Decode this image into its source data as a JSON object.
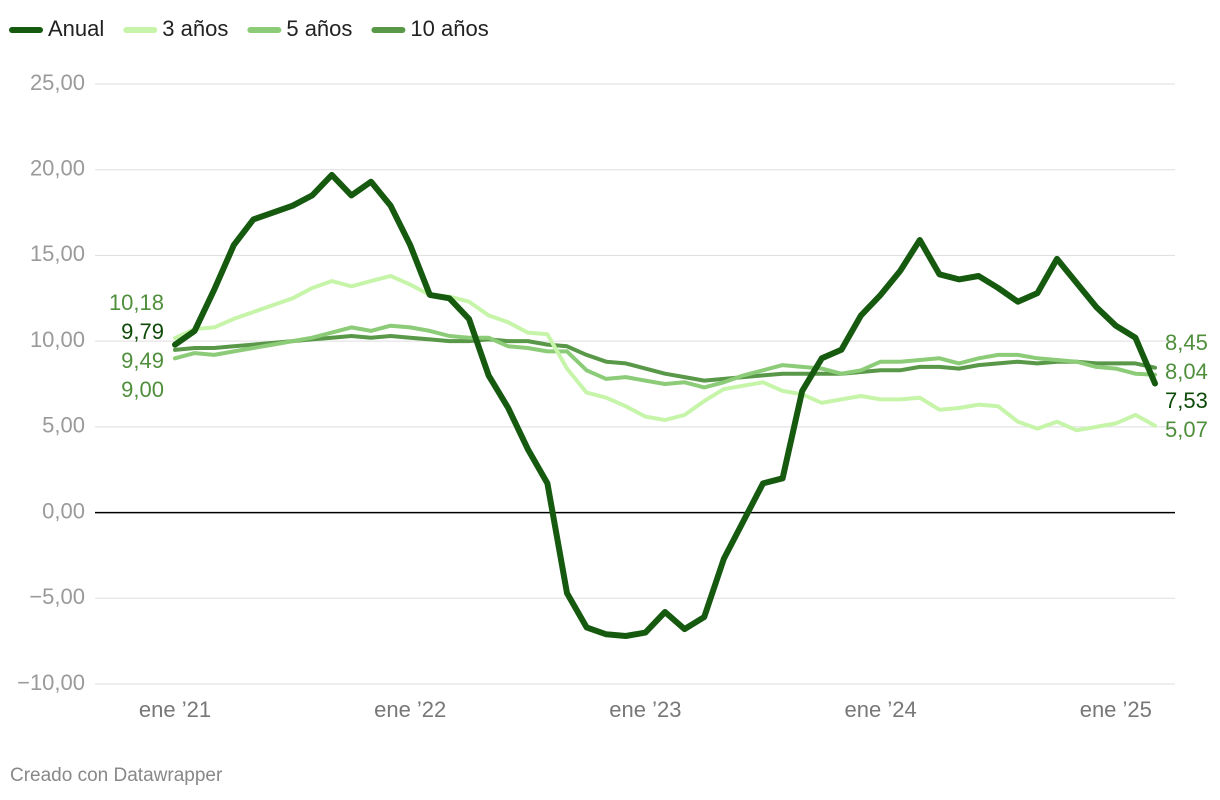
{
  "chart_data": {
    "type": "line",
    "categories": [
      "ene ’21",
      null,
      null,
      null,
      null,
      null,
      null,
      null,
      null,
      null,
      null,
      null,
      "ene ’22",
      null,
      null,
      null,
      null,
      null,
      null,
      null,
      null,
      null,
      null,
      null,
      "ene ’23",
      null,
      null,
      null,
      null,
      null,
      null,
      null,
      null,
      null,
      null,
      null,
      "ene ’24",
      null,
      null,
      null,
      null,
      null,
      null,
      null,
      null,
      null,
      null,
      null,
      "ene ’25",
      null,
      null
    ],
    "series": [
      {
        "name": "Anual",
        "color": "#165a10",
        "values": [
          9.79,
          10.6,
          13.0,
          15.6,
          17.1,
          17.5,
          17.9,
          18.5,
          19.7,
          18.5,
          19.3,
          17.9,
          15.6,
          12.7,
          12.5,
          11.3,
          8.0,
          6.1,
          3.7,
          1.7,
          -4.7,
          -6.7,
          -7.1,
          -7.2,
          -7.0,
          -5.8,
          -6.8,
          -6.1,
          -2.7,
          -0.5,
          1.7,
          2.0,
          7.1,
          9.0,
          9.5,
          11.5,
          12.7,
          14.1,
          15.9,
          13.9,
          13.6,
          13.8,
          13.1,
          12.3,
          12.8,
          14.8,
          13.4,
          12.0,
          10.9,
          10.2,
          7.53
        ],
        "value_labels": [
          "9,79",
          null,
          null,
          null,
          null,
          null,
          null,
          null,
          null,
          null,
          null,
          null,
          null,
          null,
          null,
          null,
          null,
          null,
          null,
          null,
          null,
          null,
          null,
          null,
          null,
          null,
          null,
          null,
          null,
          null,
          null,
          null,
          null,
          null,
          null,
          null,
          null,
          null,
          null,
          null,
          null,
          null,
          null,
          null,
          null,
          null,
          null,
          null,
          null,
          null,
          "7,53"
        ]
      },
      {
        "name": "3 años",
        "color": "#c6f5aa",
        "values": [
          10.18,
          10.7,
          10.8,
          11.3,
          11.7,
          12.1,
          12.5,
          13.1,
          13.5,
          13.2,
          13.5,
          13.8,
          13.3,
          12.7,
          12.6,
          12.3,
          11.5,
          11.1,
          10.5,
          10.4,
          8.4,
          7.0,
          6.7,
          6.2,
          5.6,
          5.4,
          5.7,
          6.5,
          7.2,
          7.4,
          7.6,
          7.1,
          6.9,
          6.4,
          6.6,
          6.8,
          6.6,
          6.6,
          6.7,
          6.0,
          6.1,
          6.3,
          6.2,
          5.3,
          4.9,
          5.3,
          4.8,
          5.0,
          5.2,
          5.7,
          5.07
        ],
        "value_labels": [
          "10,18",
          null,
          null,
          null,
          null,
          null,
          null,
          null,
          null,
          null,
          null,
          null,
          null,
          null,
          null,
          null,
          null,
          null,
          null,
          null,
          null,
          null,
          null,
          null,
          null,
          null,
          null,
          null,
          null,
          null,
          null,
          null,
          null,
          null,
          null,
          null,
          null,
          null,
          null,
          null,
          null,
          null,
          null,
          null,
          null,
          null,
          null,
          null,
          null,
          null,
          "5,07"
        ]
      },
      {
        "name": "5 años",
        "color": "#8ccc78",
        "values": [
          9.0,
          9.3,
          9.2,
          9.4,
          9.6,
          9.8,
          10.0,
          10.2,
          10.5,
          10.8,
          10.6,
          10.9,
          10.8,
          10.6,
          10.3,
          10.2,
          10.2,
          9.7,
          9.6,
          9.4,
          9.4,
          8.3,
          7.8,
          7.9,
          7.7,
          7.5,
          7.6,
          7.3,
          7.6,
          8.0,
          8.3,
          8.6,
          8.5,
          8.4,
          8.1,
          8.3,
          8.8,
          8.8,
          8.9,
          9.0,
          8.7,
          9.0,
          9.2,
          9.2,
          9.0,
          8.9,
          8.8,
          8.5,
          8.4,
          8.1,
          8.04
        ],
        "value_labels": [
          "9,00",
          null,
          null,
          null,
          null,
          null,
          null,
          null,
          null,
          null,
          null,
          null,
          null,
          null,
          null,
          null,
          null,
          null,
          null,
          null,
          null,
          null,
          null,
          null,
          null,
          null,
          null,
          null,
          null,
          null,
          null,
          null,
          null,
          null,
          null,
          null,
          null,
          null,
          null,
          null,
          null,
          null,
          null,
          null,
          null,
          null,
          null,
          null,
          null,
          null,
          "8,04"
        ]
      },
      {
        "name": "10 años",
        "color": "#589848",
        "values": [
          9.49,
          9.6,
          9.6,
          9.7,
          9.8,
          9.9,
          10.0,
          10.1,
          10.2,
          10.3,
          10.2,
          10.3,
          10.2,
          10.1,
          10.0,
          10.0,
          10.1,
          10.0,
          10.0,
          9.8,
          9.7,
          9.2,
          8.8,
          8.7,
          8.4,
          8.1,
          7.9,
          7.7,
          7.8,
          7.9,
          8.0,
          8.1,
          8.1,
          8.1,
          8.1,
          8.2,
          8.3,
          8.3,
          8.5,
          8.5,
          8.4,
          8.6,
          8.7,
          8.8,
          8.7,
          8.8,
          8.8,
          8.7,
          8.7,
          8.7,
          8.45
        ],
        "value_labels": [
          "9,49",
          null,
          null,
          null,
          null,
          null,
          null,
          null,
          null,
          null,
          null,
          null,
          null,
          null,
          null,
          null,
          null,
          null,
          null,
          null,
          null,
          null,
          null,
          null,
          null,
          null,
          null,
          null,
          null,
          null,
          null,
          null,
          null,
          null,
          null,
          null,
          null,
          null,
          null,
          null,
          null,
          null,
          null,
          null,
          null,
          null,
          null,
          null,
          null,
          null,
          "8,45"
        ]
      }
    ],
    "ylim": [
      -10,
      25
    ],
    "yticks": [
      {
        "value": -10,
        "label": "−10,00"
      },
      {
        "value": -5,
        "label": "−5,00"
      },
      {
        "value": 0,
        "label": "0,00"
      },
      {
        "value": 5,
        "label": "5,00"
      },
      {
        "value": 10,
        "label": "10,00"
      },
      {
        "value": 15,
        "label": "15,00"
      },
      {
        "value": 20,
        "label": "20,00"
      },
      {
        "value": 25,
        "label": "25,00"
      }
    ],
    "grid": true,
    "legend": "top-left",
    "credit": "Creado con Datawrapper"
  }
}
